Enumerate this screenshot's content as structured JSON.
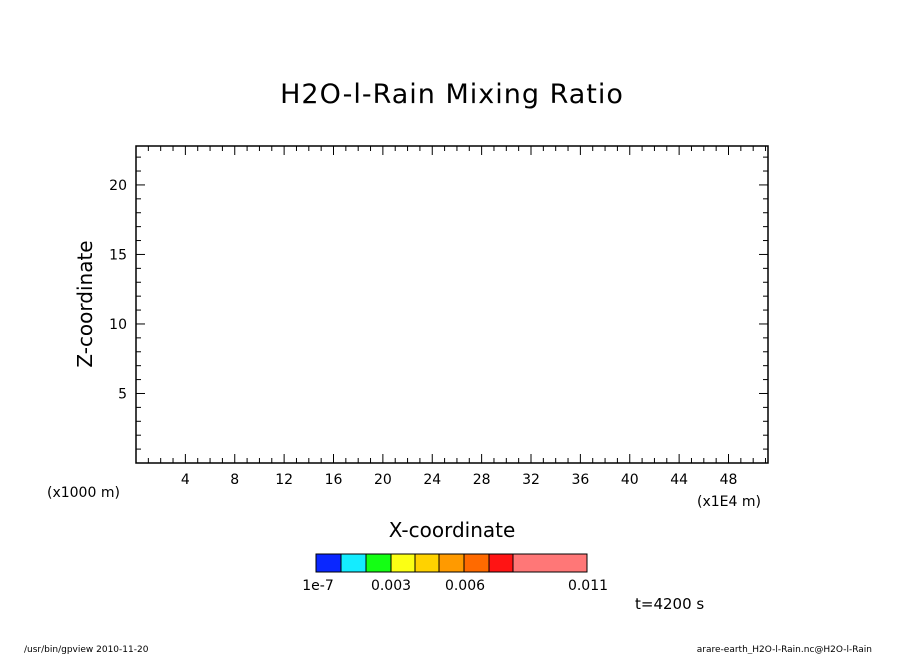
{
  "footer": {
    "left": "/usr/bin/gpview   2010-11-20",
    "right": "arare-earth_H2O-l-Rain.nc@H2O-l-Rain"
  },
  "time_label": "t=4200 s",
  "colorbar": {
    "colors": [
      "#0a27ff",
      "#14ecff",
      "#14ff14",
      "#fbff14",
      "#ffd200",
      "#ff9a00",
      "#ff6a00",
      "#ff1414",
      "#ff7777"
    ],
    "labels": [
      {
        "text": "1e-7",
        "value": 1e-07
      },
      {
        "text": "0.003",
        "value": 0.003
      },
      {
        "text": "0.006",
        "value": 0.006
      },
      {
        "text": "0.011",
        "value": 0.011
      }
    ]
  },
  "chart_data": {
    "type": "heatmap",
    "title": "H2O-l-Rain Mixing Ratio",
    "xlabel": "X-coordinate",
    "ylabel": "Z-coordinate",
    "x_unit": "(x1E4 m)",
    "y_unit": "(x1000 m)",
    "xlim": [
      0,
      51.2
    ],
    "ylim": [
      0,
      22.8
    ],
    "x_ticks": [
      4,
      8,
      12,
      16,
      20,
      24,
      28,
      32,
      36,
      40,
      44,
      48
    ],
    "y_ticks": [
      5,
      10,
      15,
      20
    ],
    "x_minor_step": 1,
    "y_minor_step": 1,
    "values": []
  }
}
